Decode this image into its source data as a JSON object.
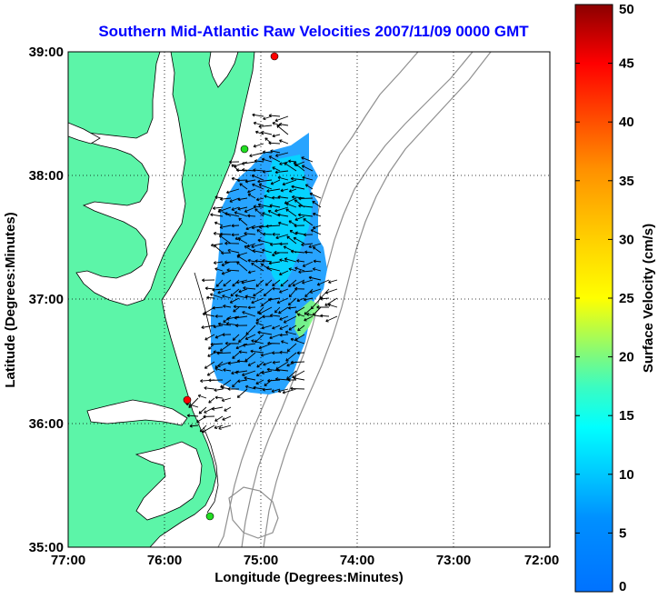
{
  "map": {
    "title": "Southern Mid-Atlantic Raw Velocities 2007/11/09 0000 GMT",
    "xlabel": "Longitude (Degrees:Minutes)",
    "ylabel": "Latitude (Degrees:Minutes)",
    "x_ticks": [
      "77:00",
      "76:00",
      "75:00",
      "74:00",
      "73:00",
      "72:00"
    ],
    "y_ticks": [
      "39:00",
      "38:00",
      "37:00",
      "36:00",
      "35:00"
    ],
    "land_color": "#5cf5a8",
    "grid": "dotted",
    "stations": [
      {
        "lon": 74.85,
        "lat": 38.95,
        "color": "#ff0000"
      },
      {
        "lon": 75.1,
        "lat": 38.2,
        "color": "#22dd22"
      },
      {
        "lon": 75.7,
        "lat": 36.17,
        "color": "#ff0000"
      },
      {
        "lon": 75.47,
        "lat": 35.25,
        "color": "#22dd22"
      }
    ]
  },
  "colorbar": {
    "label": "Surface Velocity (cm/s)",
    "ticks": [
      "0",
      "5",
      "10",
      "15",
      "20",
      "25",
      "30",
      "35",
      "40",
      "45",
      "50"
    ],
    "min": 0,
    "max": 50,
    "colormap": "jet"
  }
}
